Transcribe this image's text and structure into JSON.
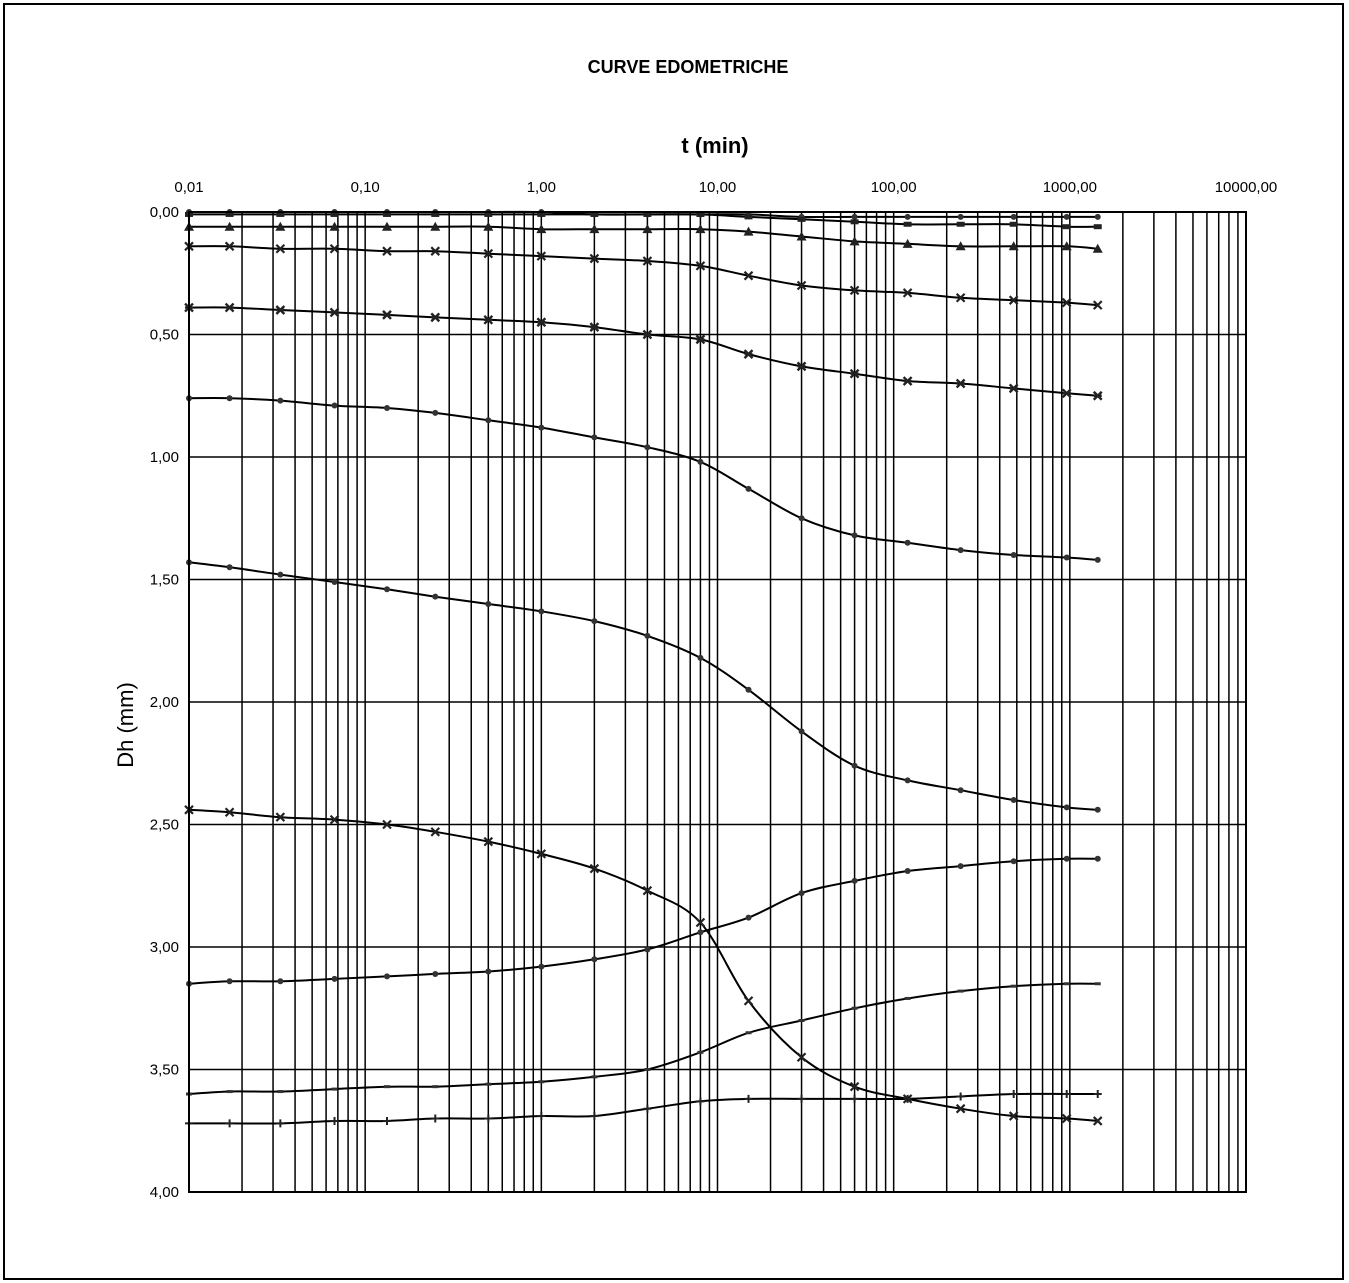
{
  "chart_data": {
    "type": "line",
    "title": "CURVE EDOMETRICHE",
    "xlabel": "t (min)",
    "ylabel": "Dh (mm)",
    "x_scale": "log",
    "xlim": [
      0.01,
      10000
    ],
    "ylim": [
      0,
      4
    ],
    "y_inverted": true,
    "x_axis_position": "top",
    "grid": true,
    "x_tick_labels": [
      "0,01",
      "0,10",
      "1,00",
      "10,00",
      "100,00",
      "1000,00",
      "10000,00"
    ],
    "y_tick_labels": [
      "0,00",
      "0,50",
      "1,00",
      "1,50",
      "2,00",
      "2,50",
      "3,00",
      "3,50",
      "4,00"
    ],
    "x": [
      0.01,
      0.017,
      0.033,
      0.067,
      0.133,
      0.25,
      0.5,
      1,
      2,
      4,
      8,
      15,
      30,
      60,
      120,
      240,
      480,
      960,
      1440
    ],
    "series": [
      {
        "marker": "dot",
        "values": [
          0.0,
          0.0,
          0.0,
          0.0,
          0.0,
          0.0,
          0.0,
          0.0,
          0.01,
          0.01,
          0.01,
          0.01,
          0.02,
          0.02,
          0.02,
          0.02,
          0.02,
          0.02,
          0.02
        ]
      },
      {
        "marker": "square",
        "values": [
          0.01,
          0.01,
          0.01,
          0.01,
          0.01,
          0.01,
          0.01,
          0.01,
          0.01,
          0.01,
          0.01,
          0.02,
          0.03,
          0.04,
          0.05,
          0.05,
          0.05,
          0.06,
          0.06
        ]
      },
      {
        "marker": "triangle",
        "values": [
          0.06,
          0.06,
          0.06,
          0.06,
          0.06,
          0.06,
          0.06,
          0.07,
          0.07,
          0.07,
          0.07,
          0.08,
          0.1,
          0.12,
          0.13,
          0.14,
          0.14,
          0.14,
          0.15
        ]
      },
      {
        "marker": "x",
        "values": [
          0.14,
          0.14,
          0.15,
          0.15,
          0.16,
          0.16,
          0.17,
          0.18,
          0.19,
          0.2,
          0.22,
          0.26,
          0.3,
          0.32,
          0.33,
          0.35,
          0.36,
          0.37,
          0.38
        ]
      },
      {
        "marker": "star",
        "values": [
          0.39,
          0.39,
          0.4,
          0.41,
          0.42,
          0.43,
          0.44,
          0.45,
          0.47,
          0.5,
          0.52,
          0.58,
          0.63,
          0.66,
          0.69,
          0.7,
          0.72,
          0.74,
          0.75
        ]
      },
      {
        "marker": "dot",
        "values": [
          0.76,
          0.76,
          0.77,
          0.79,
          0.8,
          0.82,
          0.85,
          0.88,
          0.92,
          0.96,
          1.02,
          1.13,
          1.25,
          1.32,
          1.35,
          1.38,
          1.4,
          1.41,
          1.42
        ]
      },
      {
        "marker": "dot",
        "values": [
          1.43,
          1.45,
          1.48,
          1.51,
          1.54,
          1.57,
          1.6,
          1.63,
          1.67,
          1.73,
          1.82,
          1.95,
          2.12,
          2.26,
          2.32,
          2.36,
          2.4,
          2.43,
          2.44
        ]
      },
      {
        "marker": "x",
        "values": [
          2.44,
          2.45,
          2.47,
          2.48,
          2.5,
          2.53,
          2.57,
          2.62,
          2.68,
          2.77,
          2.9,
          3.22,
          3.45,
          3.57,
          3.62,
          3.66,
          3.69,
          3.7,
          3.71
        ]
      },
      {
        "marker": "dot",
        "values": [
          3.15,
          3.14,
          3.14,
          3.13,
          3.12,
          3.11,
          3.1,
          3.08,
          3.05,
          3.01,
          2.94,
          2.88,
          2.78,
          2.73,
          2.69,
          2.67,
          2.65,
          2.64,
          2.64
        ]
      },
      {
        "marker": "dash",
        "values": [
          3.6,
          3.59,
          3.59,
          3.58,
          3.57,
          3.57,
          3.56,
          3.55,
          3.53,
          3.5,
          3.43,
          3.35,
          3.3,
          3.25,
          3.21,
          3.18,
          3.16,
          3.15,
          3.15
        ]
      },
      {
        "marker": "plus",
        "values": [
          3.72,
          3.72,
          3.72,
          3.71,
          3.71,
          3.7,
          3.7,
          3.69,
          3.69,
          3.66,
          3.63,
          3.62,
          3.62,
          3.62,
          3.62,
          3.61,
          3.6,
          3.6,
          3.6
        ]
      }
    ]
  }
}
